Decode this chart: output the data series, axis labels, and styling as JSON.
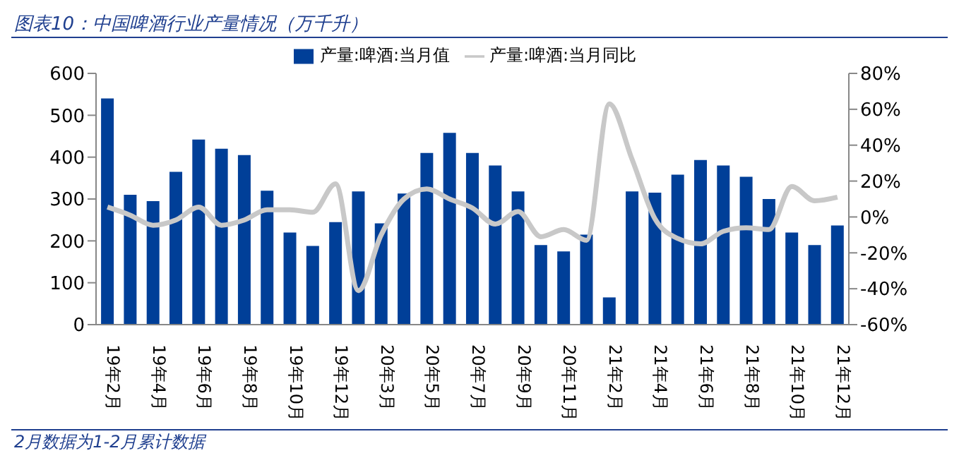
{
  "chart_data": {
    "type": "bar",
    "title": "图表10：中国啤酒行业产量情况（万千升）",
    "categories": [
      "19年2月",
      null,
      "19年4月",
      null,
      "19年6月",
      null,
      "19年8月",
      null,
      "19年10月",
      null,
      "19年12月",
      null,
      "20年3月",
      null,
      "20年5月",
      null,
      "20年7月",
      null,
      "20年9月",
      null,
      "20年11月",
      null,
      "21年2月",
      null,
      "21年4月",
      null,
      "21年6月",
      null,
      "21年8月",
      null,
      "21年10月",
      null,
      "21年12月"
    ],
    "series": [
      {
        "name": "产量:啤酒:当月值",
        "color": "#003f98",
        "values": [
          540,
          310,
          295,
          365,
          442,
          420,
          405,
          320,
          220,
          188,
          245,
          318,
          242,
          313,
          410,
          458,
          410,
          380,
          318,
          190,
          175,
          215,
          65,
          318,
          315,
          358,
          393,
          380,
          353,
          300,
          220,
          190,
          237
        ]
      },
      {
        "name": "产量:啤酒:当月同比",
        "type": "line",
        "axis": "y2",
        "color": "#c8c8c8",
        "values": [
          5.5,
          1,
          -4.6,
          -1.7,
          5.5,
          -4.6,
          -1.7,
          4,
          4,
          2.6,
          18.5,
          -41,
          -10,
          10,
          15.6,
          10,
          5,
          -4,
          3,
          -11,
          -7,
          -13,
          63,
          32,
          -1,
          -12,
          -15,
          -8,
          -6,
          -7,
          17,
          9,
          11
        ]
      }
    ],
    "ylim": [
      0,
      600
    ],
    "yticks": [
      0,
      100,
      200,
      300,
      400,
      500,
      600
    ],
    "y2lim": [
      -60,
      80
    ],
    "y2ticks": [
      {
        "value": -60,
        "label": "-60%"
      },
      {
        "value": -40,
        "label": "-40%"
      },
      {
        "value": -20,
        "label": "-20%"
      },
      {
        "value": 0,
        "label": "0%"
      },
      {
        "value": 20,
        "label": "20%"
      },
      {
        "value": 40,
        "label": "40%"
      },
      {
        "value": 60,
        "label": "60%"
      },
      {
        "value": 80,
        "label": "80%"
      }
    ],
    "legend": "top",
    "grid": false,
    "marker": "none",
    "line_style": "solid",
    "annotations": [
      "2月数据为1-2月累计数据"
    ]
  }
}
